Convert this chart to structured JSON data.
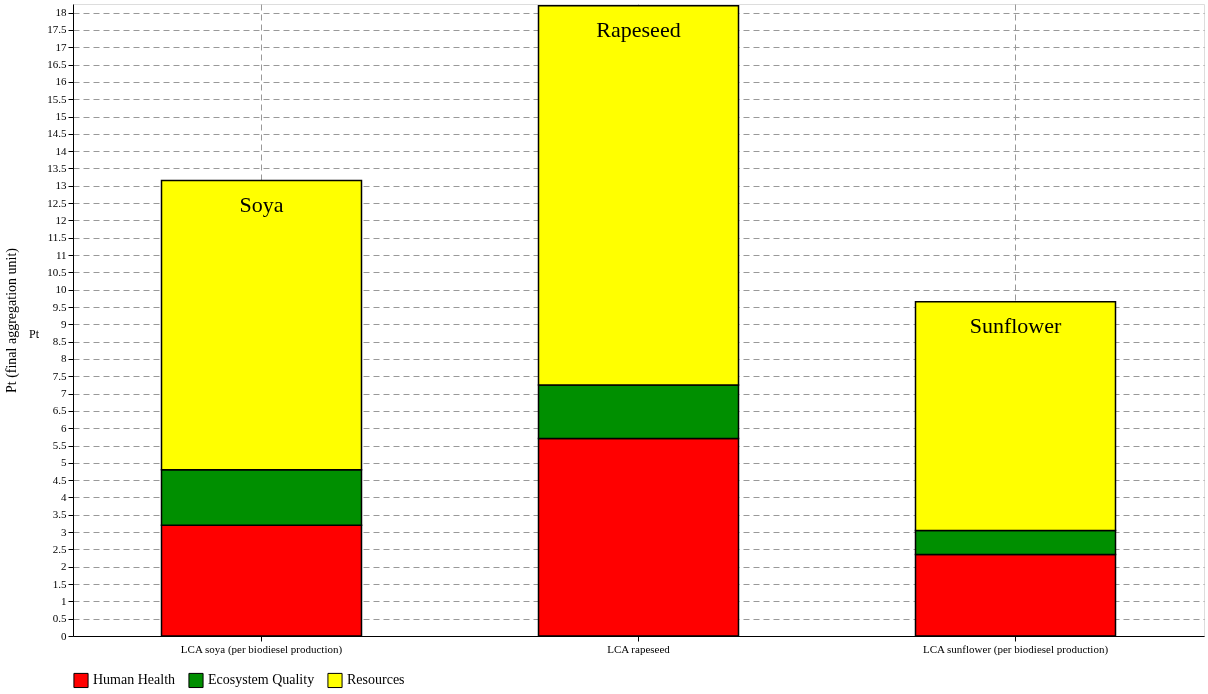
{
  "chart_data": {
    "type": "bar",
    "stacked": true,
    "ylabel": "Pt (final aggregation unit)",
    "categories": [
      "LCA soya (per biodiesel production)",
      "LCA rapeseed",
      "LCA sunflower (per biodiesel production)"
    ],
    "series": [
      {
        "name": "Human Health",
        "color": "#ff0000",
        "values": [
          3.2,
          5.7,
          2.35
        ]
      },
      {
        "name": "Ecosystem Quality",
        "color": "#008f00",
        "values": [
          1.6,
          1.55,
          0.7
        ]
      },
      {
        "name": "Resources",
        "color": "#ffff00",
        "values": [
          8.35,
          10.95,
          6.6
        ]
      }
    ],
    "ylim": [
      0,
      18.25
    ],
    "yticks": [
      0,
      0.5,
      1,
      1.5,
      2,
      2.5,
      3,
      3.5,
      4,
      4.5,
      5,
      5.5,
      6,
      6.5,
      7,
      7.5,
      8,
      8.5,
      9,
      9.5,
      10,
      10.5,
      11,
      11.5,
      12,
      12.5,
      13,
      13.5,
      14,
      14.5,
      15,
      15.5,
      16,
      16.5,
      17,
      17.5,
      18
    ],
    "annotations": [
      "Soya",
      "Rapeseed",
      "Sunflower",
      "Pt"
    ],
    "grid": true,
    "legend": "bottom"
  }
}
